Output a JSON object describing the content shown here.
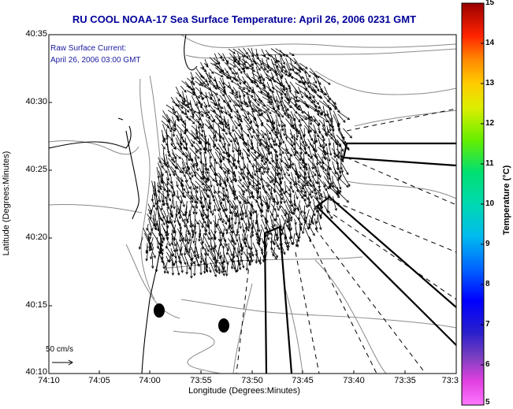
{
  "title": "RU COOL  NOAA-17  Sea Surface Temperature:  April 26, 2006 0231 GMT",
  "inset": {
    "line1": "Raw Surface Current:",
    "line2": "April 26, 2006 03:00 GMT"
  },
  "axes": {
    "xlabel": "Longitude (Degrees:Minutes)",
    "ylabel": "Latitude (Degrees:Minutes)",
    "xticks": [
      "74:10",
      "74:05",
      "74:00",
      "73:55",
      "73:50",
      "73:45",
      "73:40",
      "73:35",
      "73:3"
    ],
    "yticks": [
      "40:35",
      "40:30",
      "40:25",
      "40:20",
      "40:15",
      "40:10"
    ]
  },
  "colorbar": {
    "label": "Temperature (°C)",
    "ticks": [
      "15",
      "14",
      "13",
      "12",
      "11",
      "10",
      "9",
      "8",
      "7",
      "6",
      "5"
    ]
  },
  "scale": {
    "label": "50 cm/s"
  },
  "colors": {
    "title": "#000099",
    "land_contour": "#000000",
    "bathymetry": "#888888"
  }
}
